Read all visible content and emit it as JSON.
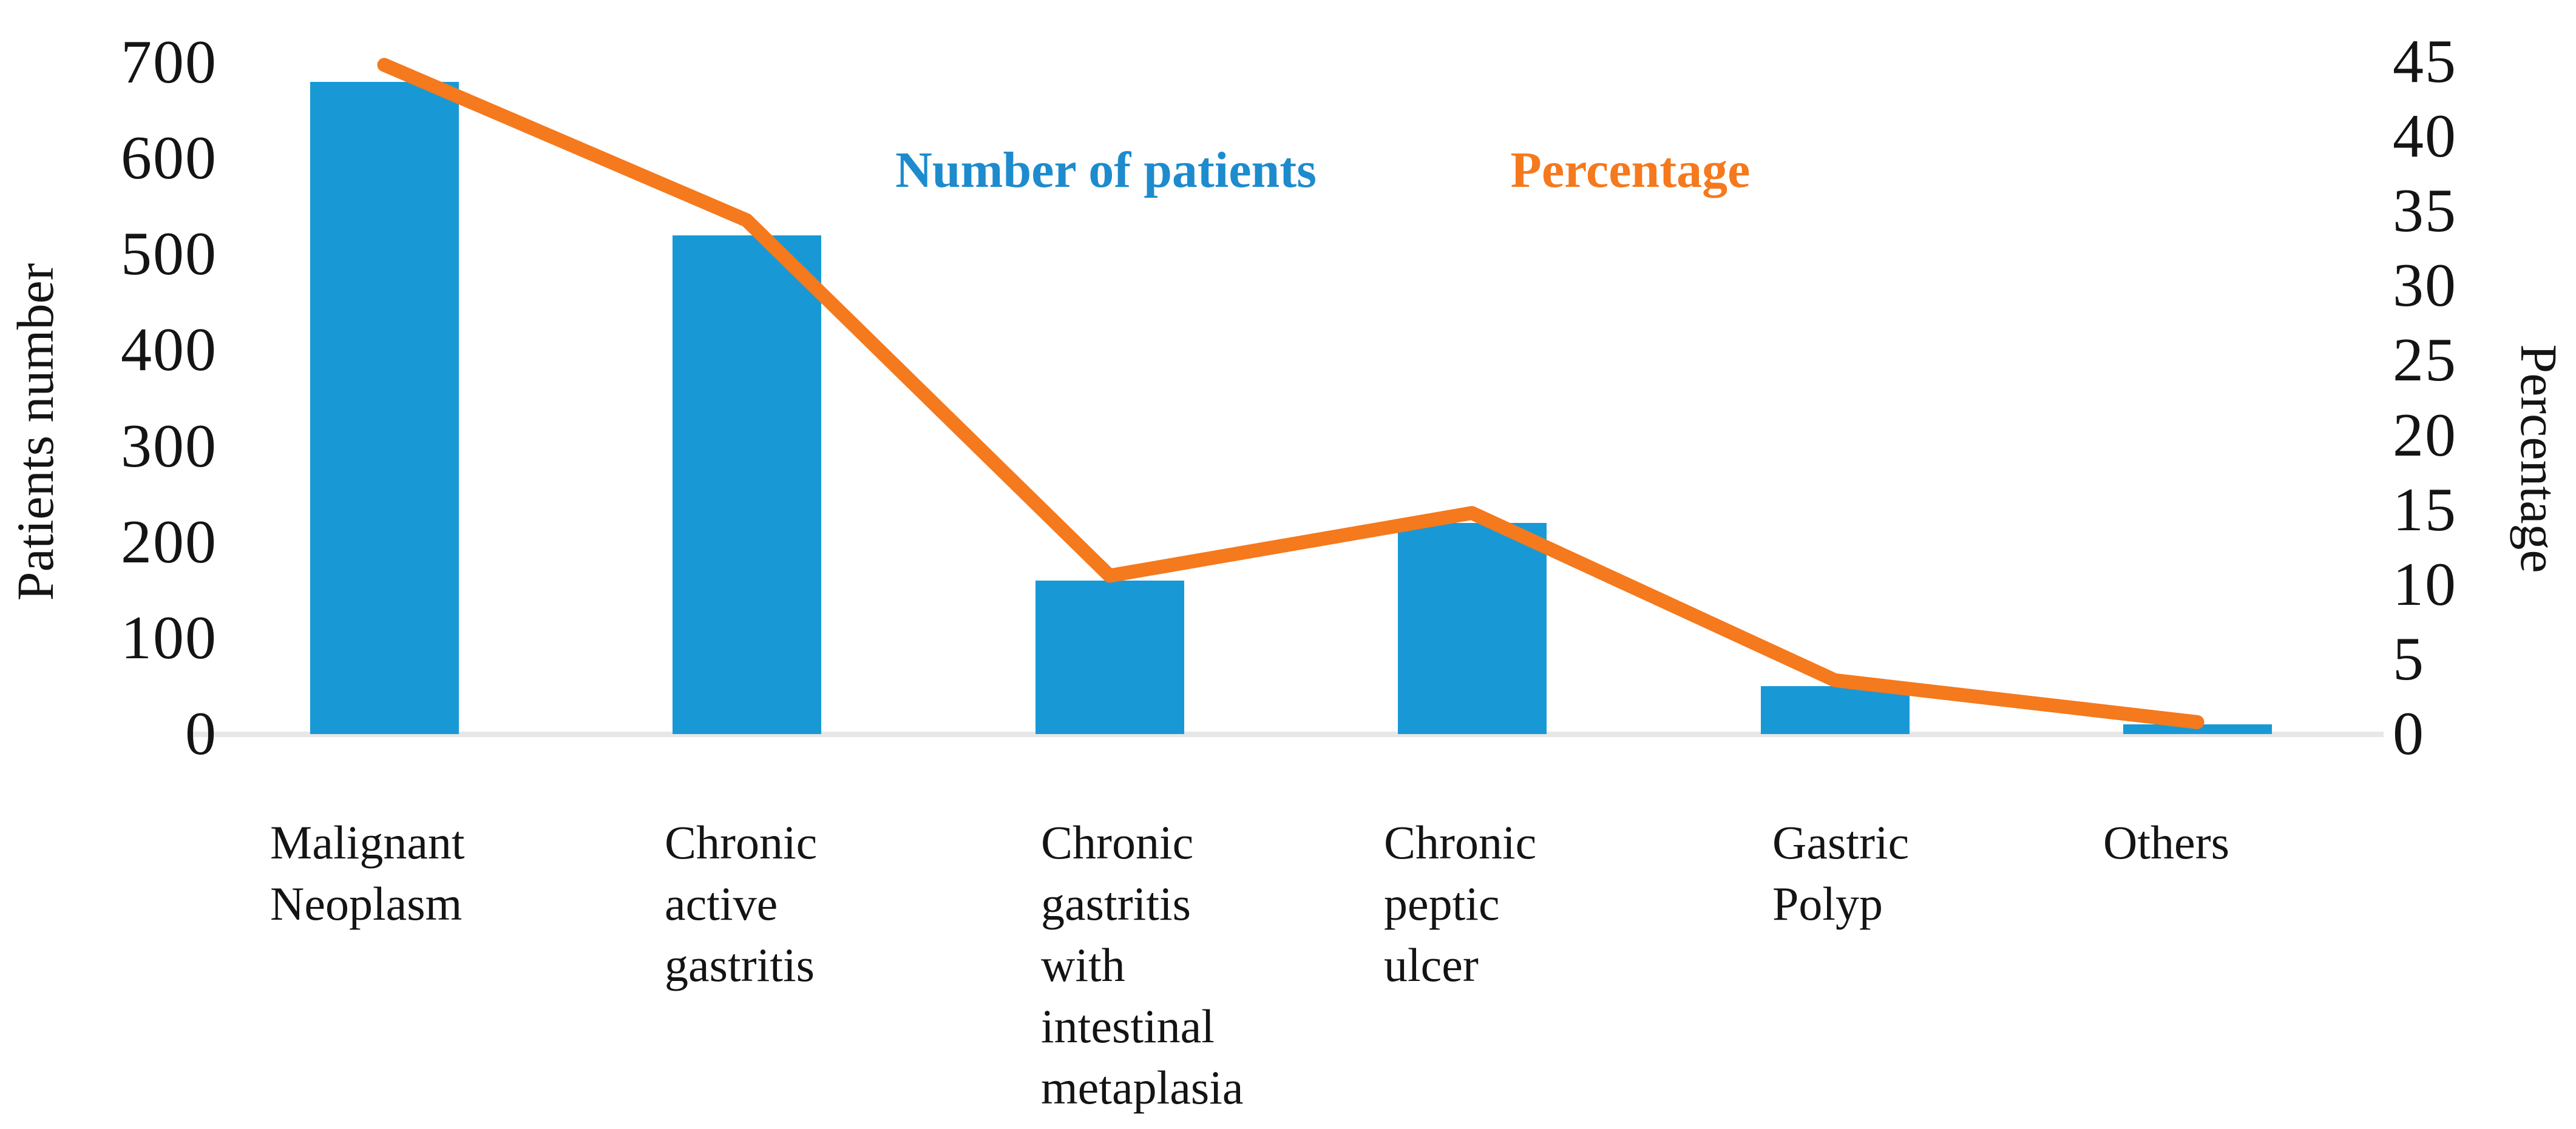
{
  "chart_data": {
    "type": "bar",
    "combo": "bar+line",
    "title": "",
    "categories": [
      "Malignant Neoplasm",
      "Chronic active gastritis",
      "Chronic gastritis with intestinal metaplasia",
      "Chronic peptic ulcer",
      "Gastric Polyp",
      "Others"
    ],
    "series": [
      {
        "name": "Number of patients",
        "type": "bar",
        "axis": "left",
        "color": "#1899d6",
        "values": [
          680,
          520,
          160,
          220,
          50,
          10
        ]
      },
      {
        "name": "Percentage",
        "type": "line",
        "axis": "right",
        "color": "#f5791d",
        "values": [
          44.8,
          34.4,
          10.6,
          14.8,
          3.6,
          0.8
        ]
      }
    ],
    "left_axis": {
      "title": "Patients number",
      "min": 0,
      "max": 700,
      "tick_step": 100,
      "ticks": [
        0,
        100,
        200,
        300,
        400,
        500,
        600,
        700
      ]
    },
    "right_axis": {
      "title": "Percentage",
      "min": 0,
      "max": 45,
      "tick_step": 5,
      "ticks": [
        0,
        5,
        10,
        15,
        20,
        25,
        30,
        35,
        40,
        45
      ]
    },
    "legend": {
      "position": "top-center-inside",
      "items": [
        {
          "label": "Number of patients",
          "color": "#1d8bce"
        },
        {
          "label": "Percentage",
          "color": "#f5791d"
        }
      ]
    },
    "grid": false,
    "background": "#ffffff",
    "axis_line_color": "#e7e7e7"
  }
}
